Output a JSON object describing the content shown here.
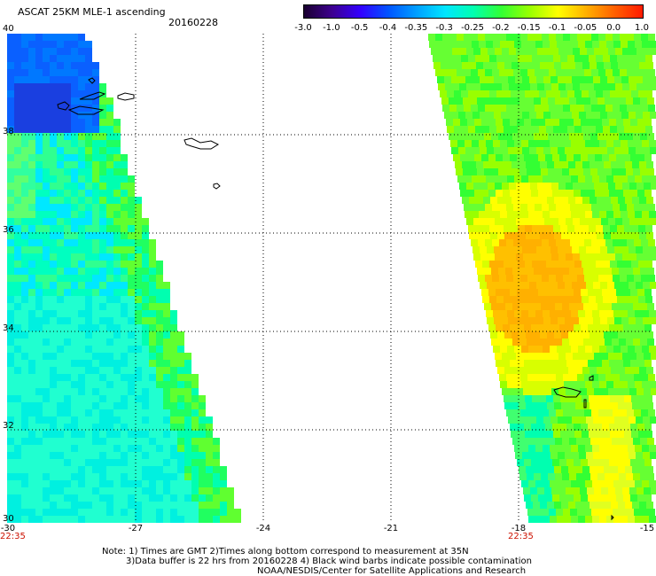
{
  "title": "ASCAT 25KM MLE-1 ascending",
  "date": "20160228",
  "colorbar": {
    "labels": [
      "-3.0",
      "-1.0",
      "-0.5",
      "-0.4",
      "-0.35",
      "-0.3",
      "-0.25",
      "-0.2",
      "-0.15",
      "-0.1",
      "-0.05",
      "0.0",
      "1.0"
    ],
    "colors": [
      "#1a0030",
      "#3d0090",
      "#3300ff",
      "#0055ff",
      "#00a0ff",
      "#00e6ff",
      "#00ffb0",
      "#33ff33",
      "#99ff00",
      "#ffff00",
      "#ffb000",
      "#ff6000",
      "#ff1a00"
    ]
  },
  "axes": {
    "lat_labels": [
      "40",
      "38",
      "36",
      "34",
      "32",
      "30"
    ],
    "lon_labels": [
      "-30",
      "-27",
      "-24",
      "-21",
      "-18",
      "-15"
    ]
  },
  "swath_times": [
    "22:35",
    "22:35"
  ],
  "notes": {
    "line1": "Note: 1) Times are GMT 2)Times along bottom correspond to measurement at 35N",
    "line2": "3)Data buffer is 22 hrs from 20160228 4) Black wind barbs indicate possible contamination",
    "line3": "NOAA/NESDIS/Center for Satellite Applications and Research"
  }
}
